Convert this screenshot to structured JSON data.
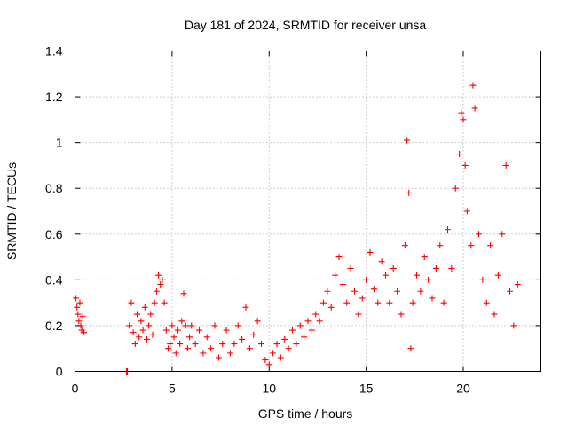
{
  "chart_data": {
    "type": "scatter",
    "title": "Day 181 of 2024, SRMTID for receiver unsa",
    "xlabel": "GPS time / hours",
    "ylabel": "SRMTID / TECUs",
    "xlim": [
      0,
      24
    ],
    "ylim": [
      0,
      1.4
    ],
    "xticks": [
      0,
      5,
      10,
      15,
      20
    ],
    "xtick_labels": [
      "0",
      "5",
      "10",
      "15",
      "20"
    ],
    "yticks": [
      0,
      0.2,
      0.4,
      0.6,
      0.8,
      1.0,
      1.2,
      1.4
    ],
    "ytick_labels": [
      "0",
      "0.2",
      "0.4",
      "0.6",
      "0.8",
      "1",
      "1.2",
      "1.4"
    ],
    "grid": true,
    "marker": "+",
    "marker_color": "#ff0000",
    "series": [
      {
        "name": "SRMTID",
        "points": [
          [
            0.05,
            0.32
          ],
          [
            0.1,
            0.28
          ],
          [
            0.15,
            0.25
          ],
          [
            0.2,
            0.22
          ],
          [
            0.25,
            0.3
          ],
          [
            0.3,
            0.2
          ],
          [
            0.35,
            0.18
          ],
          [
            0.4,
            0.24
          ],
          [
            0.45,
            0.17
          ],
          [
            2.65,
            0.0
          ],
          [
            2.7,
            0.0
          ],
          [
            2.8,
            0.2
          ],
          [
            2.9,
            0.3
          ],
          [
            3.0,
            0.17
          ],
          [
            3.1,
            0.12
          ],
          [
            3.2,
            0.25
          ],
          [
            3.3,
            0.15
          ],
          [
            3.4,
            0.22
          ],
          [
            3.5,
            0.18
          ],
          [
            3.6,
            0.28
          ],
          [
            3.7,
            0.14
          ],
          [
            3.8,
            0.2
          ],
          [
            3.9,
            0.25
          ],
          [
            4.0,
            0.16
          ],
          [
            4.1,
            0.3
          ],
          [
            4.2,
            0.35
          ],
          [
            4.3,
            0.42
          ],
          [
            4.4,
            0.38
          ],
          [
            4.5,
            0.4
          ],
          [
            4.6,
            0.3
          ],
          [
            4.7,
            0.18
          ],
          [
            4.8,
            0.1
          ],
          [
            4.9,
            0.12
          ],
          [
            5.0,
            0.2
          ],
          [
            5.1,
            0.15
          ],
          [
            5.2,
            0.08
          ],
          [
            5.3,
            0.18
          ],
          [
            5.4,
            0.12
          ],
          [
            5.5,
            0.22
          ],
          [
            5.6,
            0.34
          ],
          [
            5.7,
            0.2
          ],
          [
            5.8,
            0.1
          ],
          [
            5.9,
            0.15
          ],
          [
            6.0,
            0.2
          ],
          [
            6.2,
            0.12
          ],
          [
            6.4,
            0.18
          ],
          [
            6.6,
            0.08
          ],
          [
            6.8,
            0.15
          ],
          [
            7.0,
            0.1
          ],
          [
            7.2,
            0.2
          ],
          [
            7.4,
            0.06
          ],
          [
            7.6,
            0.12
          ],
          [
            7.8,
            0.18
          ],
          [
            8.0,
            0.08
          ],
          [
            8.2,
            0.12
          ],
          [
            8.4,
            0.2
          ],
          [
            8.6,
            0.14
          ],
          [
            8.8,
            0.28
          ],
          [
            9.0,
            0.1
          ],
          [
            9.2,
            0.16
          ],
          [
            9.4,
            0.22
          ],
          [
            9.6,
            0.12
          ],
          [
            9.8,
            0.05
          ],
          [
            10.0,
            0.03
          ],
          [
            10.2,
            0.08
          ],
          [
            10.4,
            0.12
          ],
          [
            10.6,
            0.06
          ],
          [
            10.8,
            0.14
          ],
          [
            11.0,
            0.1
          ],
          [
            11.2,
            0.18
          ],
          [
            11.4,
            0.12
          ],
          [
            11.6,
            0.2
          ],
          [
            11.8,
            0.15
          ],
          [
            12.0,
            0.22
          ],
          [
            12.2,
            0.18
          ],
          [
            12.4,
            0.25
          ],
          [
            12.6,
            0.22
          ],
          [
            12.8,
            0.3
          ],
          [
            13.0,
            0.35
          ],
          [
            13.2,
            0.28
          ],
          [
            13.4,
            0.42
          ],
          [
            13.6,
            0.5
          ],
          [
            13.8,
            0.38
          ],
          [
            14.0,
            0.3
          ],
          [
            14.2,
            0.45
          ],
          [
            14.4,
            0.35
          ],
          [
            14.6,
            0.25
          ],
          [
            14.8,
            0.32
          ],
          [
            15.0,
            0.4
          ],
          [
            15.2,
            0.52
          ],
          [
            15.4,
            0.36
          ],
          [
            15.6,
            0.3
          ],
          [
            15.8,
            0.48
          ],
          [
            16.0,
            0.42
          ],
          [
            16.2,
            0.3
          ],
          [
            16.4,
            0.45
          ],
          [
            16.6,
            0.35
          ],
          [
            16.8,
            0.25
          ],
          [
            17.0,
            0.55
          ],
          [
            17.1,
            1.01
          ],
          [
            17.2,
            0.78
          ],
          [
            17.3,
            0.1
          ],
          [
            17.4,
            0.3
          ],
          [
            17.6,
            0.42
          ],
          [
            17.8,
            0.35
          ],
          [
            18.0,
            0.5
          ],
          [
            18.2,
            0.4
          ],
          [
            18.4,
            0.32
          ],
          [
            18.6,
            0.45
          ],
          [
            18.8,
            0.55
          ],
          [
            19.0,
            0.3
          ],
          [
            19.2,
            0.62
          ],
          [
            19.4,
            0.45
          ],
          [
            19.6,
            0.8
          ],
          [
            19.8,
            0.95
          ],
          [
            19.9,
            1.13
          ],
          [
            20.0,
            1.1
          ],
          [
            20.1,
            0.9
          ],
          [
            20.2,
            0.7
          ],
          [
            20.4,
            0.55
          ],
          [
            20.5,
            1.25
          ],
          [
            20.6,
            1.15
          ],
          [
            20.8,
            0.6
          ],
          [
            21.0,
            0.4
          ],
          [
            21.2,
            0.3
          ],
          [
            21.4,
            0.55
          ],
          [
            21.6,
            0.25
          ],
          [
            21.8,
            0.42
          ],
          [
            22.0,
            0.6
          ],
          [
            22.2,
            0.9
          ],
          [
            22.4,
            0.35
          ],
          [
            22.6,
            0.2
          ],
          [
            22.8,
            0.38
          ]
        ]
      }
    ]
  }
}
